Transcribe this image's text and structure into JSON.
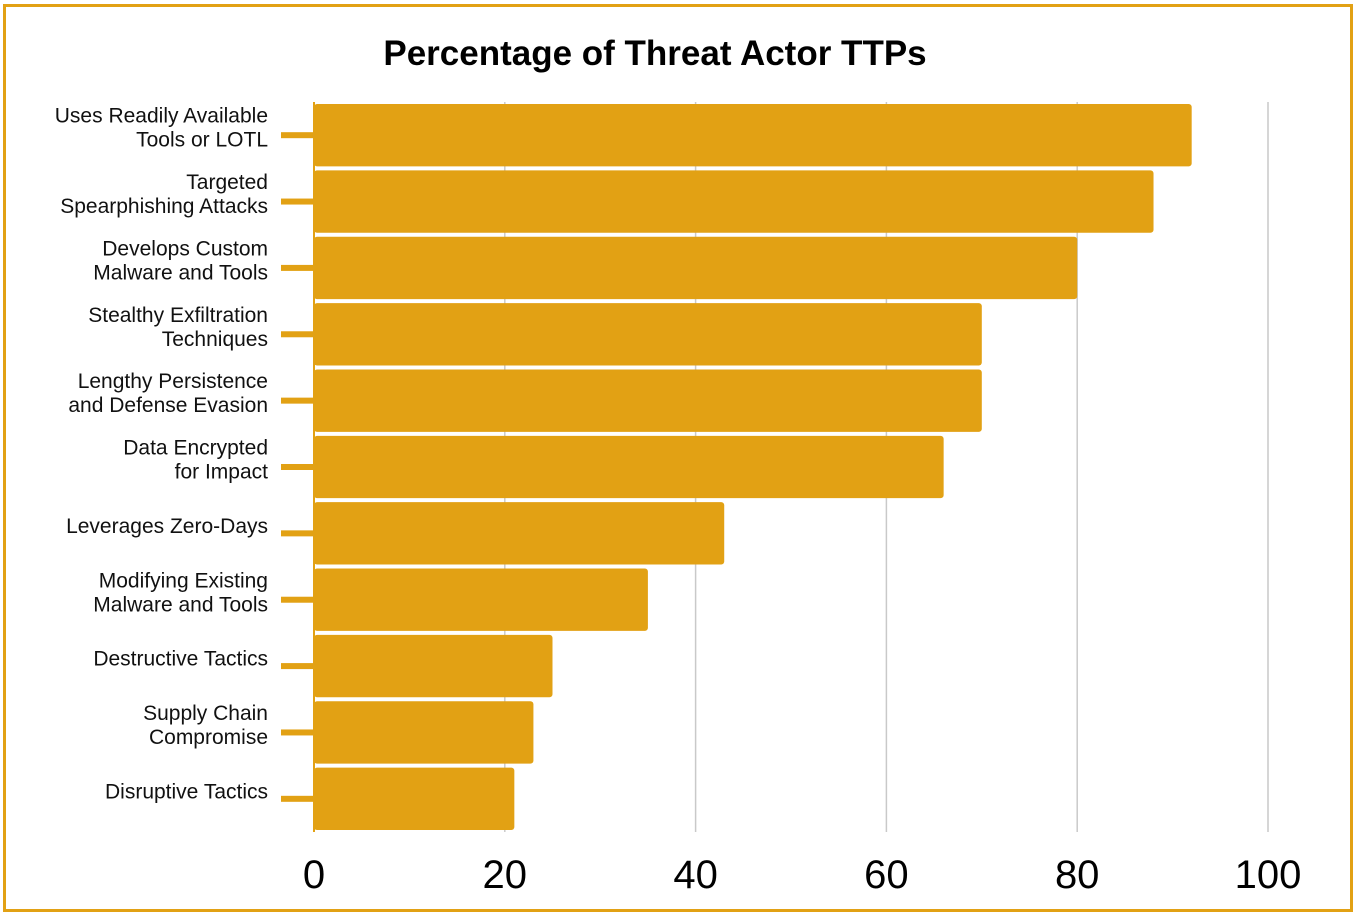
{
  "chart_data": {
    "type": "bar",
    "orientation": "horizontal",
    "title": "Percentage of Threat Actor TTPs",
    "xlabel": "",
    "ylabel": "",
    "categories": [
      [
        "Uses Readily Available",
        "Tools or LOTL"
      ],
      [
        "Targeted",
        "Spearphishing Attacks"
      ],
      [
        "Develops Custom",
        "Malware and Tools"
      ],
      [
        "Stealthy Exfiltration",
        "Techniques"
      ],
      [
        "Lengthy Persistence",
        "and Defense Evasion"
      ],
      [
        "Data Encrypted",
        "for Impact"
      ],
      [
        "Leverages Zero-Days"
      ],
      [
        "Modifying Existing",
        "Malware and Tools"
      ],
      [
        "Destructive Tactics"
      ],
      [
        "Supply Chain",
        "Compromise"
      ],
      [
        "Disruptive Tactics"
      ]
    ],
    "values": [
      92,
      88,
      80,
      70,
      70,
      66,
      43,
      35,
      25,
      23,
      21
    ],
    "xlim": [
      0,
      100
    ],
    "xticks": [
      0,
      20,
      40,
      60,
      80,
      100
    ],
    "grid": "vertical",
    "legend": "none"
  },
  "colors": {
    "bar": "#E2A114",
    "border": "#E2A114",
    "grid": "#C9C9C9",
    "axis": "#E2A114"
  }
}
